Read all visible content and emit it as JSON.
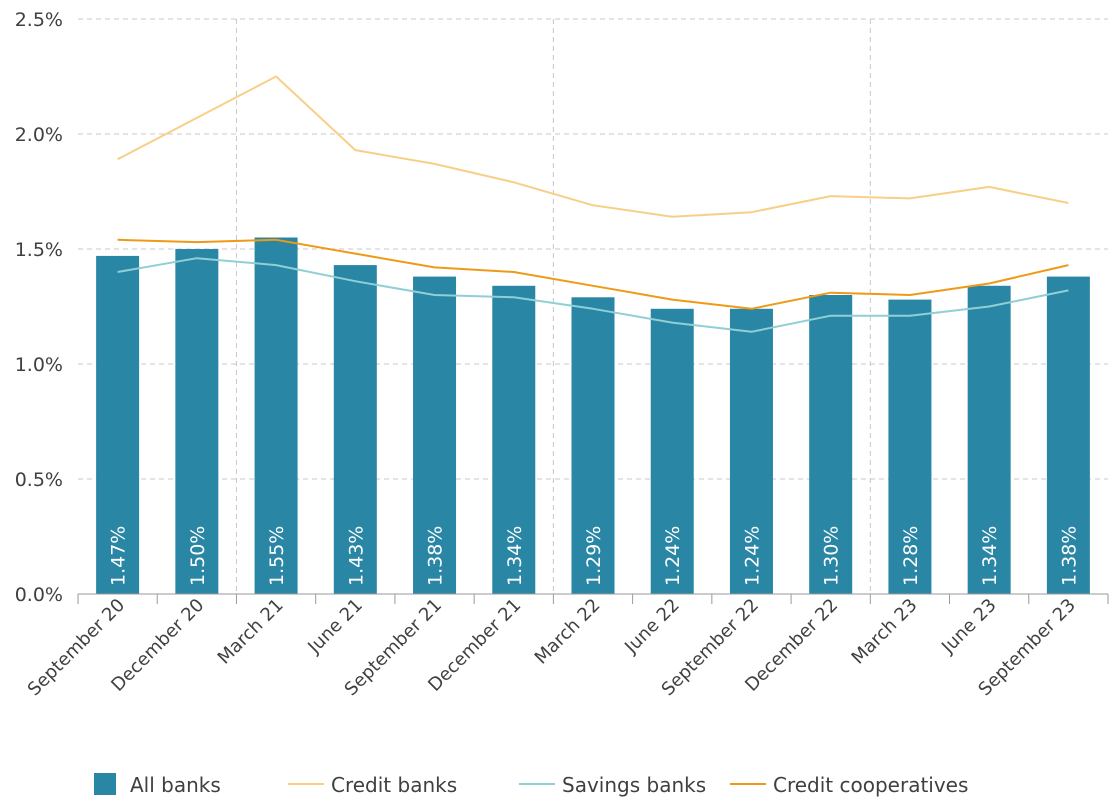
{
  "chart_data": {
    "type": "bar",
    "categories": [
      "September 20",
      "December 20",
      "March 21",
      "June 21",
      "September 21",
      "December 21",
      "March 22",
      "June 22",
      "September 22",
      "December 22",
      "March 23",
      "June 23",
      "September 23"
    ],
    "bar_series": {
      "name": "All banks",
      "color": "#2a86a5",
      "values": [
        1.47,
        1.5,
        1.55,
        1.43,
        1.38,
        1.34,
        1.29,
        1.24,
        1.24,
        1.3,
        1.28,
        1.34,
        1.38
      ],
      "labels": [
        "1.47%",
        "1.50%",
        "1.55%",
        "1.43%",
        "1.38%",
        "1.34%",
        "1.29%",
        "1.24%",
        "1.24%",
        "1.30%",
        "1.28%",
        "1.34%",
        "1.38%"
      ]
    },
    "line_series": [
      {
        "name": "Credit banks",
        "color": "#f8cf87",
        "values": [
          1.89,
          2.07,
          2.25,
          1.93,
          1.87,
          1.79,
          1.69,
          1.64,
          1.66,
          1.73,
          1.72,
          1.77,
          1.7
        ]
      },
      {
        "name": "Savings banks",
        "color": "#90cfd3",
        "values": [
          1.4,
          1.46,
          1.43,
          1.36,
          1.3,
          1.29,
          1.24,
          1.18,
          1.14,
          1.21,
          1.21,
          1.25,
          1.32
        ]
      },
      {
        "name": "Credit cooperatives",
        "color": "#ee9a16",
        "values": [
          1.54,
          1.53,
          1.54,
          1.48,
          1.42,
          1.4,
          1.34,
          1.28,
          1.24,
          1.31,
          1.3,
          1.35,
          1.43
        ]
      }
    ],
    "y_ticks": [
      "0.0%",
      "0.5%",
      "1.0%",
      "1.5%",
      "2.0%",
      "2.5%"
    ],
    "y_tick_values": [
      0,
      0.5,
      1.0,
      1.5,
      2.0,
      2.5
    ],
    "ylim": [
      0,
      2.5
    ],
    "vertical_dividers_after_index": [
      1,
      5,
      9
    ],
    "grid": true,
    "legend_position": "bottom",
    "title": "",
    "xlabel": "",
    "ylabel": ""
  },
  "legend": [
    {
      "label": "All banks",
      "kind": "bar",
      "color": "#2a86a5"
    },
    {
      "label": "Credit banks",
      "kind": "line",
      "color": "#f8cf87"
    },
    {
      "label": "Savings banks",
      "kind": "line",
      "color": "#90cfd3"
    },
    {
      "label": "Credit cooperatives",
      "kind": "line",
      "color": "#ee9a16"
    }
  ]
}
